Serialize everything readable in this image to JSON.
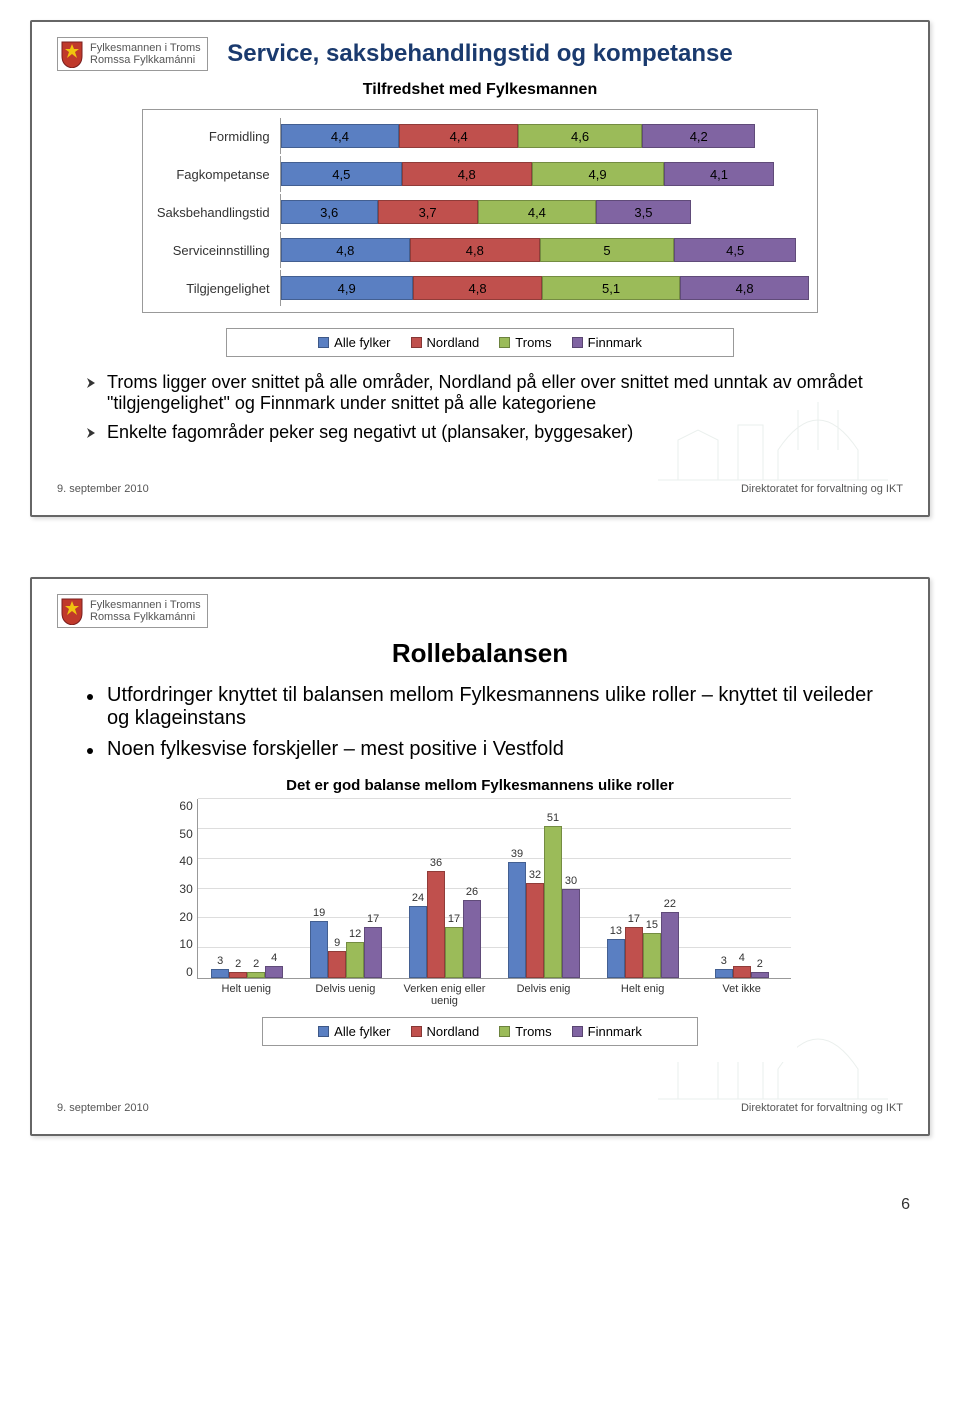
{
  "logo": {
    "line1": "Fylkesmannen i Troms",
    "line2": "Romssa Fylkkamánni"
  },
  "footer": {
    "date": "9. september 2010",
    "org": "Direktoratet for forvaltning og IKT"
  },
  "colors": {
    "series": [
      "#5a7fc2",
      "#c0504d",
      "#9bbb59",
      "#8064a2"
    ],
    "title_dark": "#1a3a6e"
  },
  "legend": [
    "Alle fylker",
    "Nordland",
    "Troms",
    "Finnmark"
  ],
  "slide1": {
    "title": "Service, saksbehandlingstid og kompetanse",
    "subtitle": "Tilfredshet med Fylkesmannen",
    "categories": [
      "Formidling",
      "Fagkompetanse",
      "Saksbehandlingstid",
      "Serviceinnstilling",
      "Tilgjengelighet"
    ],
    "data": [
      [
        4.4,
        4.4,
        4.6,
        4.2
      ],
      [
        4.5,
        4.8,
        4.9,
        4.1
      ],
      [
        3.6,
        3.7,
        4.4,
        3.5
      ],
      [
        4.8,
        4.8,
        5.0,
        4.5
      ],
      [
        4.9,
        4.8,
        5.1,
        4.8
      ]
    ],
    "bullets": [
      "Troms ligger over snittet på alle områder, Nordland på eller over snittet med unntak av området \"tilgjengelighet\" og Finnmark under snittet på alle kategoriene",
      "Enkelte fagområder peker seg negativt ut (plansaker, byggesaker)"
    ]
  },
  "slide2": {
    "title": "Rollebalansen",
    "bullets": [
      "Utfordringer knyttet til balansen mellom Fylkesmannens ulike roller – knyttet til veileder og klageinstans",
      "Noen fylkesvise forskjeller – mest positive i Vestfold"
    ],
    "chart_title": "Det er god balanse mellom Fylkesmannens ulike roller",
    "ymax": 60,
    "ystep": 10,
    "x_categories": [
      "Helt uenig",
      "Delvis uenig",
      "Verken enig eller uenig",
      "Delvis enig",
      "Helt enig",
      "Vet ikke"
    ],
    "data": [
      [
        3,
        2,
        2,
        4
      ],
      [
        19,
        9,
        12,
        17
      ],
      [
        24,
        36,
        17,
        26
      ],
      [
        39,
        32,
        51,
        30
      ],
      [
        13,
        17,
        15,
        22
      ],
      [
        3,
        4,
        null,
        2
      ]
    ]
  },
  "page_number": "6"
}
